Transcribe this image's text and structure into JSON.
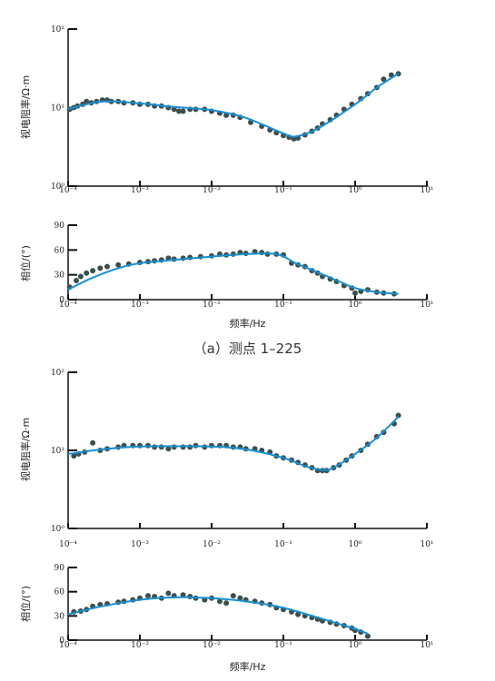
{
  "chart_data": [
    {
      "type": "scatter",
      "panel": "a-resistivity",
      "ylabel": "视电阻率/Ω·m",
      "xlabel": "",
      "x_scale": "log",
      "y_scale": "log",
      "xlim": [
        0.0001,
        10
      ],
      "ylim": [
        1,
        100
      ],
      "x_ticks": [
        "10⁻⁴",
        "10⁻³",
        "10⁻²",
        "10⁻¹",
        "10⁰",
        "10¹"
      ],
      "y_ticks": [
        "10⁰",
        "10¹",
        "10²"
      ],
      "points": [
        [
          0.000105,
          9.5
        ],
        [
          0.00012,
          10.0
        ],
        [
          0.000135,
          10.5
        ],
        [
          0.00016,
          11.0
        ],
        [
          0.00018,
          12.0
        ],
        [
          0.00021,
          11.5
        ],
        [
          0.00025,
          12.0
        ],
        [
          0.0003,
          12.5
        ],
        [
          0.00035,
          12.5
        ],
        [
          0.0004,
          12.0
        ],
        [
          0.0005,
          12.0
        ],
        [
          0.0006,
          11.5
        ],
        [
          0.0008,
          11.5
        ],
        [
          0.001,
          11.0
        ],
        [
          0.0013,
          11.0
        ],
        [
          0.0016,
          10.5
        ],
        [
          0.002,
          10.5
        ],
        [
          0.0025,
          10.0
        ],
        [
          0.003,
          9.5
        ],
        [
          0.0035,
          9.0
        ],
        [
          0.004,
          9.0
        ],
        [
          0.005,
          9.5
        ],
        [
          0.006,
          9.5
        ],
        [
          0.008,
          9.5
        ],
        [
          0.01,
          9.0
        ],
        [
          0.013,
          8.5
        ],
        [
          0.016,
          8.0
        ],
        [
          0.02,
          8.0
        ],
        [
          0.025,
          7.5
        ],
        [
          0.035,
          6.5
        ],
        [
          0.05,
          5.8
        ],
        [
          0.065,
          5.2
        ],
        [
          0.08,
          4.8
        ],
        [
          0.1,
          4.4
        ],
        [
          0.12,
          4.2
        ],
        [
          0.14,
          4.0
        ],
        [
          0.16,
          4.1
        ],
        [
          0.2,
          4.5
        ],
        [
          0.25,
          5.0
        ],
        [
          0.3,
          5.5
        ],
        [
          0.35,
          6.2
        ],
        [
          0.45,
          7.0
        ],
        [
          0.55,
          8.0
        ],
        [
          0.7,
          9.5
        ],
        [
          0.9,
          11
        ],
        [
          1.2,
          13
        ],
        [
          1.5,
          15
        ],
        [
          2.0,
          18
        ],
        [
          2.5,
          23
        ],
        [
          3.2,
          26
        ],
        [
          4.0,
          27
        ]
      ],
      "curve": [
        [
          0.0001,
          9.6
        ],
        [
          0.0003,
          12.0
        ],
        [
          0.001,
          11.3
        ],
        [
          0.003,
          10.2
        ],
        [
          0.01,
          9.3
        ],
        [
          0.03,
          7.4
        ],
        [
          0.1,
          4.7
        ],
        [
          0.15,
          4.3
        ],
        [
          0.3,
          5.4
        ],
        [
          1.0,
          11.0
        ],
        [
          2.0,
          18.0
        ],
        [
          4.0,
          27.0
        ]
      ],
      "marker_color": "#3a4f4f",
      "curve_color": "#1a8fd0"
    },
    {
      "type": "scatter",
      "panel": "a-phase",
      "ylabel": "相位/(°)",
      "xlabel": "频率/Hz",
      "x_scale": "log",
      "y_scale": "linear",
      "xlim": [
        0.0001,
        10
      ],
      "ylim": [
        0,
        90
      ],
      "x_ticks": [
        "10⁻⁴",
        "10⁻³",
        "10⁻²",
        "10⁻¹",
        "10⁰",
        "10¹"
      ],
      "y_ticks": [
        "0",
        "30",
        "60",
        "90"
      ],
      "points": [
        [
          0.000105,
          15
        ],
        [
          0.00013,
          23
        ],
        [
          0.00015,
          28
        ],
        [
          0.00018,
          32
        ],
        [
          0.00022,
          35
        ],
        [
          0.00028,
          38
        ],
        [
          0.00035,
          40
        ],
        [
          0.0005,
          42
        ],
        [
          0.0007,
          43
        ],
        [
          0.001,
          45
        ],
        [
          0.0013,
          46
        ],
        [
          0.0016,
          47
        ],
        [
          0.002,
          48
        ],
        [
          0.0025,
          50
        ],
        [
          0.003,
          49
        ],
        [
          0.004,
          50
        ],
        [
          0.005,
          51
        ],
        [
          0.007,
          52
        ],
        [
          0.01,
          53
        ],
        [
          0.013,
          55
        ],
        [
          0.016,
          54
        ],
        [
          0.02,
          55
        ],
        [
          0.025,
          57
        ],
        [
          0.03,
          56
        ],
        [
          0.04,
          58
        ],
        [
          0.05,
          57
        ],
        [
          0.06,
          55
        ],
        [
          0.08,
          55
        ],
        [
          0.1,
          54
        ],
        [
          0.13,
          44
        ],
        [
          0.16,
          42
        ],
        [
          0.2,
          40
        ],
        [
          0.25,
          35
        ],
        [
          0.3,
          32
        ],
        [
          0.35,
          28
        ],
        [
          0.45,
          25
        ],
        [
          0.55,
          22
        ],
        [
          0.7,
          17
        ],
        [
          0.9,
          14
        ],
        [
          1.0,
          8
        ],
        [
          1.2,
          10
        ],
        [
          1.5,
          12
        ],
        [
          2.0,
          9
        ],
        [
          2.5,
          8
        ],
        [
          3.5,
          7
        ]
      ],
      "curve": [
        [
          0.0001,
          12
        ],
        [
          0.0002,
          25
        ],
        [
          0.0005,
          38
        ],
        [
          0.001,
          44
        ],
        [
          0.003,
          48
        ],
        [
          0.01,
          52
        ],
        [
          0.03,
          55
        ],
        [
          0.08,
          55
        ],
        [
          0.15,
          44
        ],
        [
          0.3,
          33
        ],
        [
          0.6,
          22
        ],
        [
          1.0,
          14
        ],
        [
          2.0,
          9
        ],
        [
          4.0,
          7
        ]
      ],
      "marker_color": "#3a4f4f",
      "curve_color": "#1a8fd0"
    },
    {
      "type": "scatter",
      "panel": "b-resistivity",
      "ylabel": "视电阻率/Ω·m",
      "xlabel": "",
      "x_scale": "log",
      "y_scale": "log",
      "xlim": [
        0.0001,
        10
      ],
      "ylim": [
        1,
        100
      ],
      "x_ticks": [
        "10⁻⁴",
        "10⁻³",
        "10⁻²",
        "10⁻¹",
        "10⁰",
        "10¹"
      ],
      "y_ticks": [
        "10⁰",
        "10¹",
        "10²"
      ],
      "points": [
        [
          0.00012,
          8.5
        ],
        [
          0.00014,
          9.0
        ],
        [
          0.00017,
          9.5
        ],
        [
          0.00022,
          12.5
        ],
        [
          0.00028,
          10.0
        ],
        [
          0.00035,
          10.5
        ],
        [
          0.0005,
          11.0
        ],
        [
          0.0006,
          11.5
        ],
        [
          0.0008,
          11.5
        ],
        [
          0.001,
          11.5
        ],
        [
          0.0013,
          11.5
        ],
        [
          0.0016,
          11.0
        ],
        [
          0.002,
          11.0
        ],
        [
          0.0025,
          10.5
        ],
        [
          0.003,
          11.0
        ],
        [
          0.004,
          11.0
        ],
        [
          0.005,
          11.0
        ],
        [
          0.006,
          11.5
        ],
        [
          0.008,
          11.0
        ],
        [
          0.01,
          11.5
        ],
        [
          0.013,
          11.5
        ],
        [
          0.016,
          11.5
        ],
        [
          0.02,
          11.0
        ],
        [
          0.025,
          11.0
        ],
        [
          0.03,
          10.5
        ],
        [
          0.04,
          10.5
        ],
        [
          0.05,
          10.0
        ],
        [
          0.065,
          9.5
        ],
        [
          0.08,
          8.5
        ],
        [
          0.1,
          8.0
        ],
        [
          0.13,
          7.5
        ],
        [
          0.16,
          7.0
        ],
        [
          0.2,
          6.5
        ],
        [
          0.25,
          6.0
        ],
        [
          0.3,
          5.5
        ],
        [
          0.35,
          5.5
        ],
        [
          0.4,
          5.5
        ],
        [
          0.5,
          6.0
        ],
        [
          0.6,
          6.5
        ],
        [
          0.75,
          7.5
        ],
        [
          0.9,
          8.5
        ],
        [
          1.2,
          10
        ],
        [
          1.5,
          12
        ],
        [
          2.0,
          15
        ],
        [
          2.5,
          17
        ],
        [
          3.5,
          22
        ],
        [
          4.0,
          28
        ]
      ],
      "curve": [
        [
          0.0001,
          9.0
        ],
        [
          0.0003,
          10.3
        ],
        [
          0.001,
          11.2
        ],
        [
          0.003,
          11.3
        ],
        [
          0.01,
          11.2
        ],
        [
          0.03,
          10.3
        ],
        [
          0.1,
          8.0
        ],
        [
          0.2,
          6.3
        ],
        [
          0.35,
          5.6
        ],
        [
          0.5,
          6.0
        ],
        [
          1.0,
          9.0
        ],
        [
          2.0,
          14.5
        ],
        [
          4.0,
          27.0
        ]
      ],
      "marker_color": "#3a4f4f",
      "curve_color": "#1a8fd0"
    },
    {
      "type": "scatter",
      "panel": "b-phase",
      "ylabel": "相位/(°)",
      "xlabel": "频率/Hz",
      "x_scale": "log",
      "y_scale": "linear",
      "xlim": [
        0.0001,
        10
      ],
      "ylim": [
        0,
        90
      ],
      "x_ticks": [
        "10⁻⁴",
        "10⁻³",
        "10⁻²",
        "10⁻¹",
        "10⁰",
        "10¹"
      ],
      "y_ticks": [
        "0",
        "30",
        "60",
        "90"
      ],
      "points": [
        [
          0.00012,
          35
        ],
        [
          0.00015,
          36
        ],
        [
          0.00018,
          38
        ],
        [
          0.00022,
          42
        ],
        [
          0.00028,
          44
        ],
        [
          0.00035,
          45
        ],
        [
          0.0005,
          47
        ],
        [
          0.0006,
          48
        ],
        [
          0.0008,
          50
        ],
        [
          0.001,
          52
        ],
        [
          0.0013,
          55
        ],
        [
          0.0016,
          54
        ],
        [
          0.002,
          52
        ],
        [
          0.0025,
          58
        ],
        [
          0.003,
          55
        ],
        [
          0.004,
          56
        ],
        [
          0.005,
          54
        ],
        [
          0.006,
          52
        ],
        [
          0.008,
          50
        ],
        [
          0.01,
          52
        ],
        [
          0.013,
          48
        ],
        [
          0.016,
          46
        ],
        [
          0.02,
          55
        ],
        [
          0.025,
          52
        ],
        [
          0.03,
          50
        ],
        [
          0.04,
          48
        ],
        [
          0.05,
          46
        ],
        [
          0.065,
          44
        ],
        [
          0.08,
          40
        ],
        [
          0.1,
          38
        ],
        [
          0.13,
          35
        ],
        [
          0.16,
          32
        ],
        [
          0.2,
          30
        ],
        [
          0.25,
          28
        ],
        [
          0.3,
          26
        ],
        [
          0.35,
          24
        ],
        [
          0.45,
          22
        ],
        [
          0.55,
          20
        ],
        [
          0.7,
          18
        ],
        [
          0.9,
          15
        ],
        [
          1.0,
          12
        ],
        [
          1.2,
          10
        ],
        [
          1.5,
          5
        ]
      ],
      "curve": [
        [
          0.0001,
          32
        ],
        [
          0.0003,
          42
        ],
        [
          0.001,
          50
        ],
        [
          0.003,
          53
        ],
        [
          0.01,
          52
        ],
        [
          0.03,
          48
        ],
        [
          0.1,
          40
        ],
        [
          0.3,
          28
        ],
        [
          0.6,
          20
        ],
        [
          1.0,
          14
        ],
        [
          1.5,
          8
        ]
      ],
      "marker_color": "#3a4f4f",
      "curve_color": "#1a8fd0"
    }
  ],
  "captions": {
    "a": "（a）测点 1–225"
  }
}
